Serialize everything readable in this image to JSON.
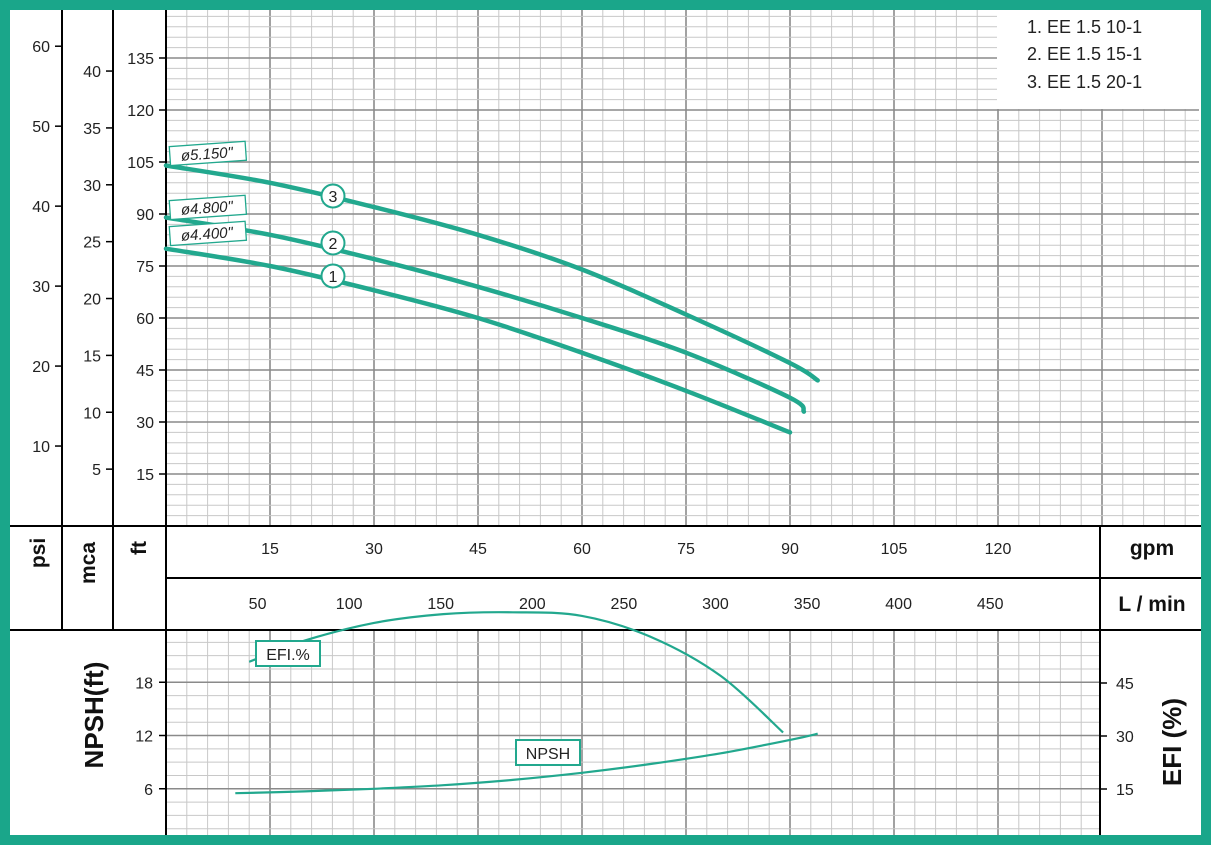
{
  "colors": {
    "frame": "#1aa68a",
    "curve": "#22a88e",
    "grid": "#c8c8c8",
    "grid_major": "#8a8a8a"
  },
  "chart_data": [
    {
      "type": "line",
      "title": "",
      "legend": [
        "1. EE 1.5 10-1",
        "2. EE 1.5 15-1",
        "3. EE 1.5 20-1"
      ],
      "legend_position": "top-right",
      "x_axes": [
        {
          "unit": "gpm",
          "range": [
            0,
            150
          ],
          "ticks": [
            15,
            30,
            45,
            60,
            75,
            90,
            105,
            120
          ]
        },
        {
          "unit": "L / min",
          "ticks": [
            50,
            100,
            150,
            200,
            250,
            300,
            350,
            400,
            450
          ]
        }
      ],
      "y_axes": [
        {
          "unit": "ft",
          "range": [
            0,
            150
          ],
          "ticks": [
            15,
            30,
            45,
            60,
            75,
            90,
            105,
            120,
            135
          ]
        },
        {
          "unit": "mca",
          "ticks": [
            5,
            10,
            15,
            20,
            25,
            30,
            35,
            40
          ]
        },
        {
          "unit": "psi",
          "ticks": [
            10,
            20,
            30,
            40,
            50,
            60
          ]
        }
      ],
      "grid": true,
      "series": [
        {
          "name": "1",
          "diameter_label": "ø4.400\"",
          "x": [
            0,
            15,
            30,
            45,
            60,
            75,
            90
          ],
          "y": [
            80,
            75,
            68,
            60,
            50,
            39,
            27
          ]
        },
        {
          "name": "2",
          "diameter_label": "ø4.800\"",
          "x": [
            0,
            15,
            30,
            45,
            60,
            75,
            90,
            92
          ],
          "y": [
            89,
            84,
            77,
            69,
            60,
            50,
            37,
            33
          ]
        },
        {
          "name": "3",
          "diameter_label": "ø5.150\"",
          "x": [
            0,
            15,
            30,
            45,
            60,
            75,
            90,
            94
          ],
          "y": [
            104,
            99,
            92,
            84,
            74,
            61,
            47,
            42
          ]
        }
      ]
    },
    {
      "type": "line",
      "title": "",
      "x_unit": "gpm",
      "y_left": {
        "label": "NPSH(ft)",
        "range": [
          0,
          24
        ],
        "ticks": [
          6,
          12,
          18
        ]
      },
      "y_right": {
        "label": "EFI (%)",
        "range": [
          0,
          72
        ],
        "ticks": [
          15,
          30,
          45
        ]
      },
      "grid": true,
      "series": [
        {
          "name": "EFI.%",
          "axis": "right",
          "x": [
            12,
            20,
            30,
            40,
            50,
            60,
            70,
            80,
            89
          ],
          "y": [
            51,
            57,
            62,
            64.5,
            65,
            64,
            58,
            47,
            31
          ]
        },
        {
          "name": "NPSH",
          "axis": "left",
          "x": [
            10,
            20,
            30,
            40,
            50,
            60,
            70,
            80,
            90,
            94
          ],
          "y": [
            5.5,
            5.7,
            6.0,
            6.4,
            7.0,
            7.8,
            8.8,
            10.0,
            11.5,
            12.2
          ]
        }
      ]
    }
  ]
}
